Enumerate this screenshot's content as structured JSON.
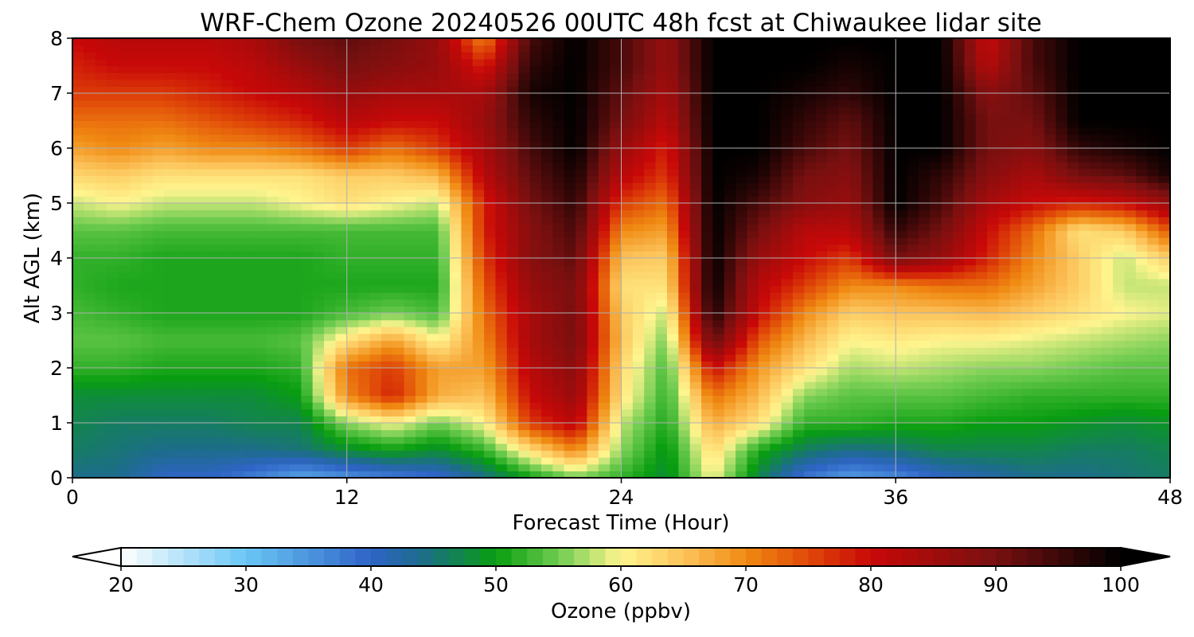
{
  "chart_data": {
    "type": "heatmap",
    "title": "WRF-Chem Ozone  20240526 00UTC 48h fcst at Chiwaukee lidar site",
    "xlabel": "Forecast Time (Hour)",
    "ylabel": "Alt AGL (km)",
    "xlim": [
      0,
      48
    ],
    "ylim": [
      0,
      8
    ],
    "x_ticks": [
      "0",
      "12",
      "24",
      "36",
      "48"
    ],
    "y_ticks": [
      "0",
      "1",
      "2",
      "3",
      "4",
      "5",
      "6",
      "7",
      "8"
    ],
    "grid": true,
    "colorbar": {
      "label": "Ozone  (ppbv)",
      "range": [
        20,
        100
      ],
      "extend": "both",
      "ticks": [
        "20",
        "30",
        "40",
        "50",
        "60",
        "70",
        "80",
        "90",
        "100"
      ],
      "stops": [
        {
          "v": 20,
          "color": "#ffffff"
        },
        {
          "v": 30,
          "color": "#6ac6f5"
        },
        {
          "v": 40,
          "color": "#2f64c6"
        },
        {
          "v": 44,
          "color": "#1d6c8c"
        },
        {
          "v": 50,
          "color": "#089d10"
        },
        {
          "v": 55,
          "color": "#6fcc50"
        },
        {
          "v": 60,
          "color": "#fff58f"
        },
        {
          "v": 65,
          "color": "#fcc35a"
        },
        {
          "v": 70,
          "color": "#f08a12"
        },
        {
          "v": 75,
          "color": "#e04808"
        },
        {
          "v": 80,
          "color": "#c80808"
        },
        {
          "v": 90,
          "color": "#781010"
        },
        {
          "v": 100,
          "color": "#000000"
        }
      ]
    },
    "x_hours": [
      0,
      2,
      4,
      6,
      8,
      10,
      12,
      14,
      16,
      18,
      20,
      22,
      24,
      26,
      28,
      30,
      32,
      34,
      36,
      38,
      40,
      42,
      44,
      46,
      48
    ],
    "y_km": [
      0,
      0.5,
      1,
      1.5,
      2,
      2.5,
      3,
      3.5,
      4,
      4.5,
      5,
      5.5,
      6,
      6.5,
      7,
      7.5,
      8
    ],
    "ozone_ppbv": [
      [
        44,
        44,
        40,
        40,
        37,
        33,
        35,
        37,
        39,
        44,
        50,
        55,
        52,
        48,
        60,
        47,
        38,
        34,
        36,
        40,
        42,
        44,
        44,
        45,
        46
      ],
      [
        46,
        45,
        44,
        44,
        44,
        45,
        48,
        50,
        48,
        52,
        62,
        70,
        56,
        49,
        63,
        51,
        46,
        44,
        45,
        47,
        47,
        47,
        46,
        46,
        47
      ],
      [
        47,
        46,
        46,
        46,
        47,
        47,
        56,
        60,
        55,
        60,
        76,
        82,
        58,
        51,
        67,
        62,
        52,
        52,
        51,
        51,
        50,
        50,
        49,
        48,
        49
      ],
      [
        48,
        48,
        48,
        48,
        48,
        50,
        70,
        78,
        67,
        65,
        80,
        86,
        62,
        52,
        72,
        66,
        56,
        54,
        54,
        54,
        53,
        52,
        52,
        52,
        52
      ],
      [
        52,
        52,
        51,
        51,
        51,
        52,
        72,
        76,
        68,
        68,
        82,
        88,
        63,
        53,
        80,
        69,
        62,
        57,
        58,
        57,
        56,
        56,
        55,
        54,
        54
      ],
      [
        54,
        54,
        53,
        53,
        53,
        54,
        62,
        68,
        60,
        70,
        84,
        90,
        65,
        55,
        92,
        74,
        66,
        60,
        61,
        60,
        60,
        59,
        58,
        57,
        56
      ],
      [
        53,
        52,
        51,
        51,
        51,
        51,
        53,
        55,
        53,
        72,
        84,
        90,
        64,
        58,
        98,
        80,
        70,
        64,
        65,
        65,
        66,
        64,
        62,
        60,
        59
      ],
      [
        52,
        51,
        51,
        51,
        51,
        51,
        51,
        51,
        51,
        74,
        86,
        90,
        62,
        62,
        100,
        82,
        76,
        70,
        70,
        72,
        72,
        68,
        64,
        58,
        58
      ],
      [
        52,
        52,
        51,
        51,
        51,
        51,
        52,
        52,
        52,
        76,
        88,
        92,
        65,
        64,
        100,
        86,
        80,
        76,
        90,
        86,
        78,
        70,
        64,
        58,
        64
      ],
      [
        54,
        54,
        53,
        53,
        53,
        53,
        53,
        53,
        53,
        78,
        88,
        94,
        70,
        68,
        100,
        90,
        82,
        82,
        96,
        90,
        80,
        72,
        62,
        64,
        74
      ],
      [
        58,
        60,
        58,
        58,
        58,
        60,
        62,
        60,
        58,
        78,
        90,
        96,
        76,
        72,
        100,
        94,
        88,
        86,
        100,
        94,
        84,
        80,
        78,
        80,
        86
      ],
      [
        63,
        64,
        62,
        62,
        62,
        62,
        64,
        64,
        66,
        82,
        92,
        98,
        82,
        76,
        100,
        98,
        90,
        88,
        100,
        96,
        88,
        84,
        90,
        92,
        98
      ],
      [
        68,
        70,
        68,
        70,
        70,
        72,
        76,
        72,
        76,
        84,
        94,
        100,
        86,
        78,
        100,
        100,
        94,
        90,
        100,
        100,
        90,
        88,
        96,
        98,
        100
      ],
      [
        72,
        72,
        72,
        74,
        76,
        78,
        82,
        80,
        80,
        86,
        96,
        100,
        90,
        82,
        100,
        100,
        96,
        92,
        100,
        100,
        90,
        90,
        100,
        100,
        100
      ],
      [
        76,
        76,
        76,
        78,
        80,
        82,
        86,
        84,
        84,
        84,
        98,
        100,
        92,
        84,
        100,
        100,
        98,
        96,
        100,
        100,
        88,
        92,
        100,
        100,
        100
      ],
      [
        78,
        80,
        80,
        80,
        82,
        86,
        90,
        88,
        86,
        78,
        96,
        100,
        94,
        86,
        100,
        100,
        100,
        98,
        100,
        100,
        82,
        94,
        100,
        100,
        100
      ],
      [
        80,
        82,
        82,
        82,
        84,
        90,
        92,
        90,
        86,
        70,
        94,
        100,
        94,
        86,
        100,
        100,
        100,
        100,
        100,
        100,
        80,
        94,
        100,
        100,
        100
      ]
    ]
  }
}
